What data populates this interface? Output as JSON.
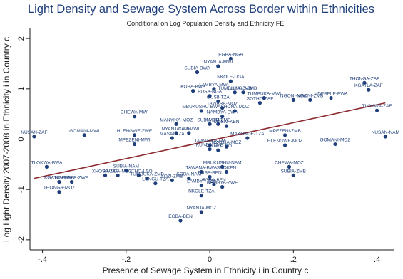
{
  "colors": {
    "background": "#ffffff",
    "title": "#1f3f7a",
    "points": "#1f3f7a",
    "fit_line": "#8b2a2f",
    "text": "#1a1a1a"
  },
  "chart_data": {
    "type": "scatter",
    "title": "Light Density and Sewage System Across Border within Ethnicities",
    "subtitle": "Conditional on Log Population Density and Ethnicity FE",
    "xlabel": "Presence of Sewage System in Ethnicity i in Country c",
    "ylabel": "Log Light Density 2007-2008 in Ethnicity i in Country c",
    "xlim": [
      -0.43,
      0.44
    ],
    "ylim": [
      -2.2,
      2.2
    ],
    "xticks": [
      -0.4,
      -0.2,
      0,
      0.2,
      0.4
    ],
    "xtick_labels": [
      "-.4",
      "-.2",
      "0",
      ".2",
      ".4"
    ],
    "yticks": [
      -2,
      -1,
      0,
      1,
      2
    ],
    "yticks_labels": [
      "-2",
      "-1",
      "0",
      "1",
      "2"
    ],
    "grid": false,
    "legend": "none",
    "fit_line": {
      "x": [
        -0.42,
        0.42
      ],
      "y": [
        -0.78,
        0.72
      ]
    },
    "points": [
      {
        "label": "EGBA-NGA",
        "x": 0.05,
        "y": 1.6
      },
      {
        "label": "NYANJA-MWI",
        "x": 0.02,
        "y": 1.45
      },
      {
        "label": "SUBIA-BWA",
        "x": -0.03,
        "y": 1.33
      },
      {
        "label": "NKOLE-UGA",
        "x": 0.05,
        "y": 1.15
      },
      {
        "label": "KGATLA-ZAF",
        "x": 0.38,
        "y": 0.98
      },
      {
        "label": "THONGA-ZAF",
        "x": 0.37,
        "y": 1.12
      },
      {
        "label": "LAMBYA-MWI",
        "x": 0.01,
        "y": 1.0
      },
      {
        "label": "KOBA-BWA",
        "x": -0.04,
        "y": 0.96
      },
      {
        "label": "TUMBUKA-ZMB",
        "x": 0.06,
        "y": 0.93
      },
      {
        "label": "LUNGU-ZMB",
        "x": 0.08,
        "y": 0.93
      },
      {
        "label": "BUSA-NGA",
        "x": 0.0,
        "y": 0.86
      },
      {
        "label": "NDEBELE-BWA",
        "x": 0.29,
        "y": 0.82
      },
      {
        "label": "TUMBUKA-MWI",
        "x": 0.13,
        "y": 0.82
      },
      {
        "label": "NGONI-MWI",
        "x": 0.2,
        "y": 0.78
      },
      {
        "label": "NGONI-ZMB",
        "x": 0.24,
        "y": 0.78
      },
      {
        "label": "SOTHO-ZAF",
        "x": 0.12,
        "y": 0.72
      },
      {
        "label": "GUSII-TZA",
        "x": 0.02,
        "y": 0.75
      },
      {
        "label": "TAWARA-MOZ",
        "x": 0.03,
        "y": 0.62
      },
      {
        "label": "TLOKWA-ZAF",
        "x": 0.4,
        "y": 0.57
      },
      {
        "label": "MBUKUSHU-BWA",
        "x": -0.02,
        "y": 0.56
      },
      {
        "label": "SHONA-MOZ",
        "x": 0.06,
        "y": 0.56
      },
      {
        "label": "CHEWA-MWI",
        "x": -0.18,
        "y": 0.45
      },
      {
        "label": "NAMBYA-BWA",
        "x": 0.03,
        "y": 0.45
      },
      {
        "label": "MANYIKA-MOZ",
        "x": -0.08,
        "y": 0.3
      },
      {
        "label": "SUBIA-ZMB",
        "x": 0.0,
        "y": 0.3
      },
      {
        "label": "AMBO-ZMB",
        "x": 0.02,
        "y": 0.3
      },
      {
        "label": "MASAI-KEN",
        "x": 0.04,
        "y": 0.26
      },
      {
        "label": "GOMANI-MWI",
        "x": -0.3,
        "y": 0.08
      },
      {
        "label": "NUSAN-ZAF",
        "x": -0.42,
        "y": 0.05
      },
      {
        "label": "HLENGWE-ZWE",
        "x": -0.18,
        "y": 0.08
      },
      {
        "label": "MPEZENI-ZMB",
        "x": 0.18,
        "y": 0.08
      },
      {
        "label": "NUSAN-NAM",
        "x": 0.42,
        "y": 0.05
      },
      {
        "label": "NYANJA-ZMB",
        "x": -0.08,
        "y": 0.12
      },
      {
        "label": "YAO-MWI",
        "x": -0.05,
        "y": 0.12
      },
      {
        "label": "MASAI-TZA",
        "x": -0.09,
        "y": 0.02
      },
      {
        "label": "MAKONDE-TZA",
        "x": 0.09,
        "y": 0.02
      },
      {
        "label": "MPEZENI-MWI",
        "x": -0.18,
        "y": -0.1
      },
      {
        "label": "HLENGWE-MOZ",
        "x": 0.18,
        "y": -0.12
      },
      {
        "label": "GOMANI-MOZ",
        "x": 0.3,
        "y": -0.1
      },
      {
        "label": "TAWANA-NAM",
        "x": 0.0,
        "y": -0.12
      },
      {
        "label": "KUNDA-ZMB",
        "x": 0.0,
        "y": -0.2
      },
      {
        "label": "SOTHO-LSO",
        "x": 0.02,
        "y": -0.22
      },
      {
        "label": "NYANJA-MOZ",
        "x": 0.04,
        "y": -0.15
      },
      {
        "label": "TLOKWA-BWA",
        "x": -0.39,
        "y": -0.55
      },
      {
        "label": "KGATLA-BWA",
        "x": -0.36,
        "y": -0.85
      },
      {
        "label": "THONGA-MOZ",
        "x": -0.36,
        "y": -1.05
      },
      {
        "label": "NDEBELE-ZWE",
        "x": -0.33,
        "y": -0.85
      },
      {
        "label": "SUBIA-NAM",
        "x": -0.2,
        "y": -0.62
      },
      {
        "label": "XHOSA-ZAF",
        "x": -0.25,
        "y": -0.72
      },
      {
        "label": "KUNDA-MOZ",
        "x": -0.22,
        "y": -0.72
      },
      {
        "label": "SOTHO-LSO",
        "x": -0.17,
        "y": -0.72
      },
      {
        "label": "TUMBUKA-ZMB",
        "x": -0.15,
        "y": -0.78
      },
      {
        "label": "LUNGU-TZA",
        "x": -0.13,
        "y": -0.88
      },
      {
        "label": "LOZI-ZMB",
        "x": -0.09,
        "y": -0.82
      },
      {
        "label": "KOBA-NAM",
        "x": -0.05,
        "y": -0.78
      },
      {
        "label": "CHEWA-MOZ",
        "x": 0.19,
        "y": -0.55
      },
      {
        "label": "SUBIA-ZMB",
        "x": 0.2,
        "y": -0.72
      },
      {
        "label": "MBUKUSHU-NAM",
        "x": 0.03,
        "y": -0.55
      },
      {
        "label": "TAWANA-BWA",
        "x": -0.02,
        "y": -0.65
      },
      {
        "label": "BUSA-BEN",
        "x": 0.0,
        "y": -0.75
      },
      {
        "label": "SHOKEN",
        "x": 0.04,
        "y": -0.65
      },
      {
        "label": "LAMBYA-TZA",
        "x": -0.02,
        "y": -0.92
      },
      {
        "label": "EGBA-BEN",
        "x": 0.01,
        "y": -0.9
      },
      {
        "label": "NAMBYA-ZWE",
        "x": 0.03,
        "y": -0.95
      },
      {
        "label": "NKOLE-TZA",
        "x": -0.02,
        "y": -1.12
      },
      {
        "label": "NYANJA-MOZ",
        "x": -0.02,
        "y": -1.45
      },
      {
        "label": "EGBA-BEN",
        "x": -0.07,
        "y": -1.62
      }
    ]
  }
}
